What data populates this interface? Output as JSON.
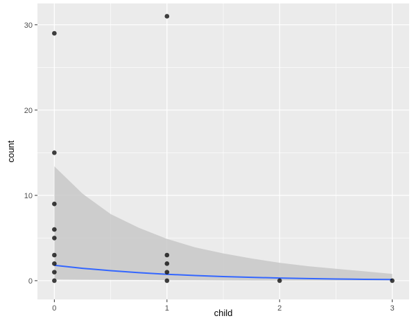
{
  "chart_data": {
    "type": "scatter",
    "xlabel": "child",
    "ylabel": "count",
    "xlim": [
      -0.15,
      3.15
    ],
    "ylim": [
      -2.2,
      32.5
    ],
    "x_ticks": [
      0,
      1,
      2,
      3
    ],
    "y_ticks": [
      0,
      10,
      20,
      30
    ],
    "x_minor": [
      0.5,
      1.5,
      2.5
    ],
    "y_minor": [
      5,
      15,
      25
    ],
    "grid": true,
    "colors": {
      "panel": "#ebebeb",
      "grid": "#ffffff",
      "points": "#000000",
      "smooth_line": "#3366ff",
      "ribbon": "#c8c8c8"
    },
    "points": [
      {
        "x": 0,
        "y": 29
      },
      {
        "x": 0,
        "y": 15
      },
      {
        "x": 0,
        "y": 9
      },
      {
        "x": 0,
        "y": 6
      },
      {
        "x": 0,
        "y": 5
      },
      {
        "x": 0,
        "y": 3
      },
      {
        "x": 0,
        "y": 2
      },
      {
        "x": 0,
        "y": 1
      },
      {
        "x": 0,
        "y": 0
      },
      {
        "x": 1,
        "y": 31
      },
      {
        "x": 1,
        "y": 3
      },
      {
        "x": 1,
        "y": 2
      },
      {
        "x": 1,
        "y": 1
      },
      {
        "x": 1,
        "y": 0
      },
      {
        "x": 2,
        "y": 0
      },
      {
        "x": 3,
        "y": 0
      }
    ],
    "smooth": {
      "x": [
        0,
        0.25,
        0.5,
        0.75,
        1,
        1.25,
        1.5,
        1.75,
        2,
        2.25,
        2.5,
        2.75,
        3
      ],
      "fit": [
        1.8,
        1.45,
        1.17,
        0.94,
        0.75,
        0.6,
        0.48,
        0.39,
        0.31,
        0.25,
        0.2,
        0.16,
        0.13
      ],
      "upper": [
        13.4,
        10.2,
        7.8,
        6.2,
        4.9,
        3.9,
        3.2,
        2.6,
        2.1,
        1.7,
        1.4,
        1.1,
        0.8
      ],
      "lower": [
        0.15,
        0.12,
        0.1,
        0.08,
        0.05,
        0.04,
        0.03,
        0.02,
        0.02,
        0.01,
        0.01,
        0.01,
        0.01
      ]
    }
  }
}
